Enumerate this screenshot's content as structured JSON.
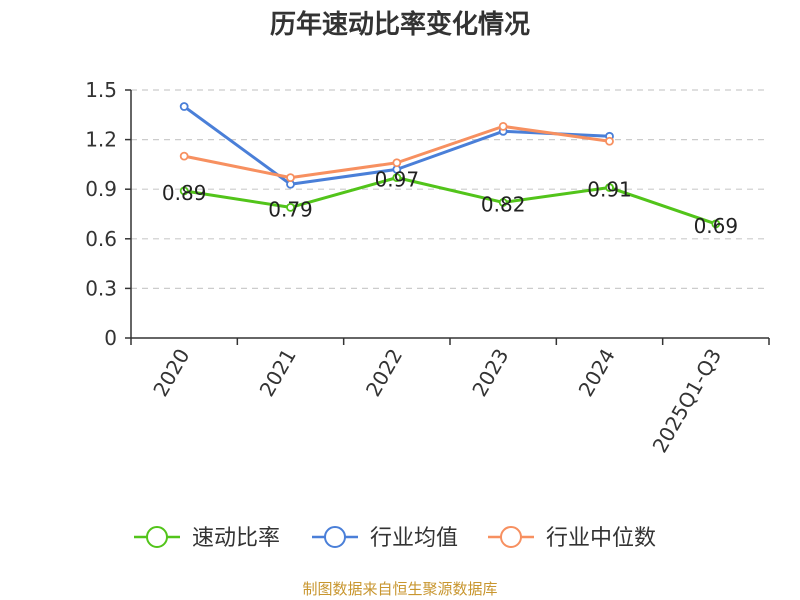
{
  "chart_data": {
    "type": "line",
    "title": "历年速动比率变化情况",
    "categories": [
      "2020",
      "2021",
      "2022",
      "2023",
      "2024",
      "2025Q1-Q3"
    ],
    "ylim": [
      0,
      1.5
    ],
    "yticks": [
      "0",
      "0.3",
      "0.6",
      "0.9",
      "1.2",
      "1.5"
    ],
    "grid": true,
    "legend_position": "bottom",
    "series": [
      {
        "name": "速动比率",
        "color": "#52c41a",
        "values": [
          0.89,
          0.79,
          0.97,
          0.82,
          0.91,
          0.69
        ],
        "labels": [
          "0.89",
          "0.79",
          "0.97",
          "0.82",
          "0.91",
          "0.69"
        ]
      },
      {
        "name": "行业均值",
        "color": "#4a7fd8",
        "values": [
          1.4,
          0.93,
          1.02,
          1.25,
          1.22,
          null
        ]
      },
      {
        "name": "行业中位数",
        "color": "#f79060",
        "values": [
          1.1,
          0.97,
          1.06,
          1.28,
          1.19,
          null
        ]
      }
    ]
  },
  "footer": {
    "source": "制图数据来自恒生聚源数据库"
  }
}
